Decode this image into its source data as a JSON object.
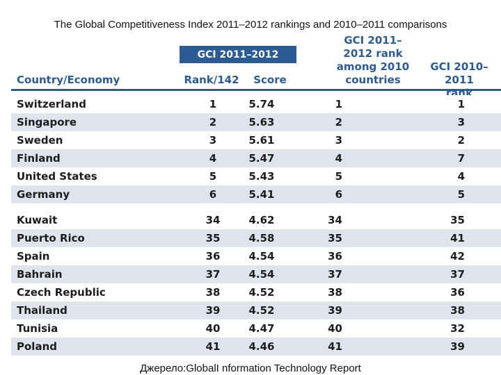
{
  "title": "The Global Competitiveness Index 2011–2012 rankings and 2010–2011 comparisons",
  "banner": "GCI 2011–2012",
  "headers": {
    "country": "Country/Economy",
    "rank": "Rank/142",
    "score": "Score",
    "among_1": "GCI 2011–",
    "among_2": "2012 rank",
    "among_3": "among 2010",
    "among_4": "countries",
    "prev_1": "GCI 2010–2011",
    "prev_2": "rank"
  },
  "rows_top": [
    {
      "country": "Switzerland",
      "rank": "1",
      "score": "5.74",
      "among": "1",
      "prev": "1"
    },
    {
      "country": "Singapore",
      "rank": "2",
      "score": "5.63",
      "among": "2",
      "prev": "3"
    },
    {
      "country": "Sweden",
      "rank": "3",
      "score": "5.61",
      "among": "3",
      "prev": "2"
    },
    {
      "country": "Finland",
      "rank": "4",
      "score": "5.47",
      "among": "4",
      "prev": "7"
    },
    {
      "country": "United States",
      "rank": "5",
      "score": "5.43",
      "among": "5",
      "prev": "4"
    },
    {
      "country": "Germany",
      "rank": "6",
      "score": "5.41",
      "among": "6",
      "prev": "5"
    }
  ],
  "rows_bottom": [
    {
      "country": "Kuwait",
      "rank": "34",
      "score": "4.62",
      "among": "34",
      "prev": "35"
    },
    {
      "country": "Puerto Rico",
      "rank": "35",
      "score": "4.58",
      "among": "35",
      "prev": "41"
    },
    {
      "country": "Spain",
      "rank": "36",
      "score": "4.54",
      "among": "36",
      "prev": "42"
    },
    {
      "country": "Bahrain",
      "rank": "37",
      "score": "4.54",
      "among": "37",
      "prev": "37"
    },
    {
      "country": "Czech Republic",
      "rank": "38",
      "score": "4.52",
      "among": "38",
      "prev": "36"
    },
    {
      "country": "Thailand",
      "rank": "39",
      "score": "4.52",
      "among": "39",
      "prev": "38"
    },
    {
      "country": "Tunisia",
      "rank": "40",
      "score": "4.47",
      "among": "40",
      "prev": "32"
    },
    {
      "country": "Poland",
      "rank": "41",
      "score": "4.46",
      "among": "41",
      "prev": "39"
    }
  ],
  "source": "Джерело:GlobalI nformation Technology Report"
}
